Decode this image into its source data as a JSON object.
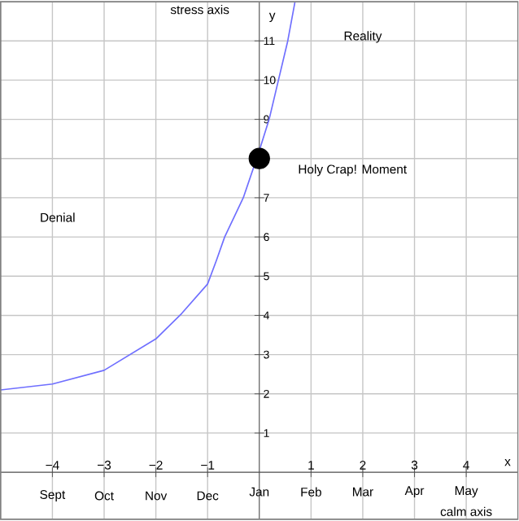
{
  "chart_data": {
    "type": "line",
    "xlabel": "calm axis",
    "ylabel": "stress axis",
    "xlim": [
      -5,
      5
    ],
    "ylim": [
      -1.2,
      12
    ],
    "xticks": [
      {
        "value": -4,
        "label": "−4"
      },
      {
        "value": -3,
        "label": "−3"
      },
      {
        "value": -2,
        "label": "−2"
      },
      {
        "value": -1,
        "label": "−1"
      },
      1,
      2,
      3,
      4
    ],
    "yticks": [
      1,
      2,
      3,
      4,
      5,
      6,
      7,
      {
        "value": 8,
        "label": null
      },
      9,
      10,
      11
    ],
    "grid": true,
    "series": [
      {
        "color": "#6f6fff",
        "marker": "none",
        "x": [
          -5,
          -4,
          -3,
          -2,
          -1.5,
          -1,
          -0.83,
          -0.67,
          -0.31,
          0,
          0.19,
          0.37,
          0.55,
          0.69
        ],
        "values": [
          2.1,
          2.25,
          2.6,
          3.4,
          4.05,
          4.8,
          5.4,
          6,
          7,
          8.2,
          9,
          10,
          11,
          12
        ]
      },
      {
        "type": "scatter",
        "color": "#000000",
        "marker": "circle",
        "x": [
          0
        ],
        "values": [
          8
        ]
      }
    ],
    "annotations": [
      "Denial",
      "Reality",
      "Holy Crap! Moment",
      "Sept",
      "Oct",
      "Nov",
      "Dec",
      "Jan",
      "Feb",
      "Mar",
      "Apr",
      "May",
      "y",
      "x"
    ]
  }
}
